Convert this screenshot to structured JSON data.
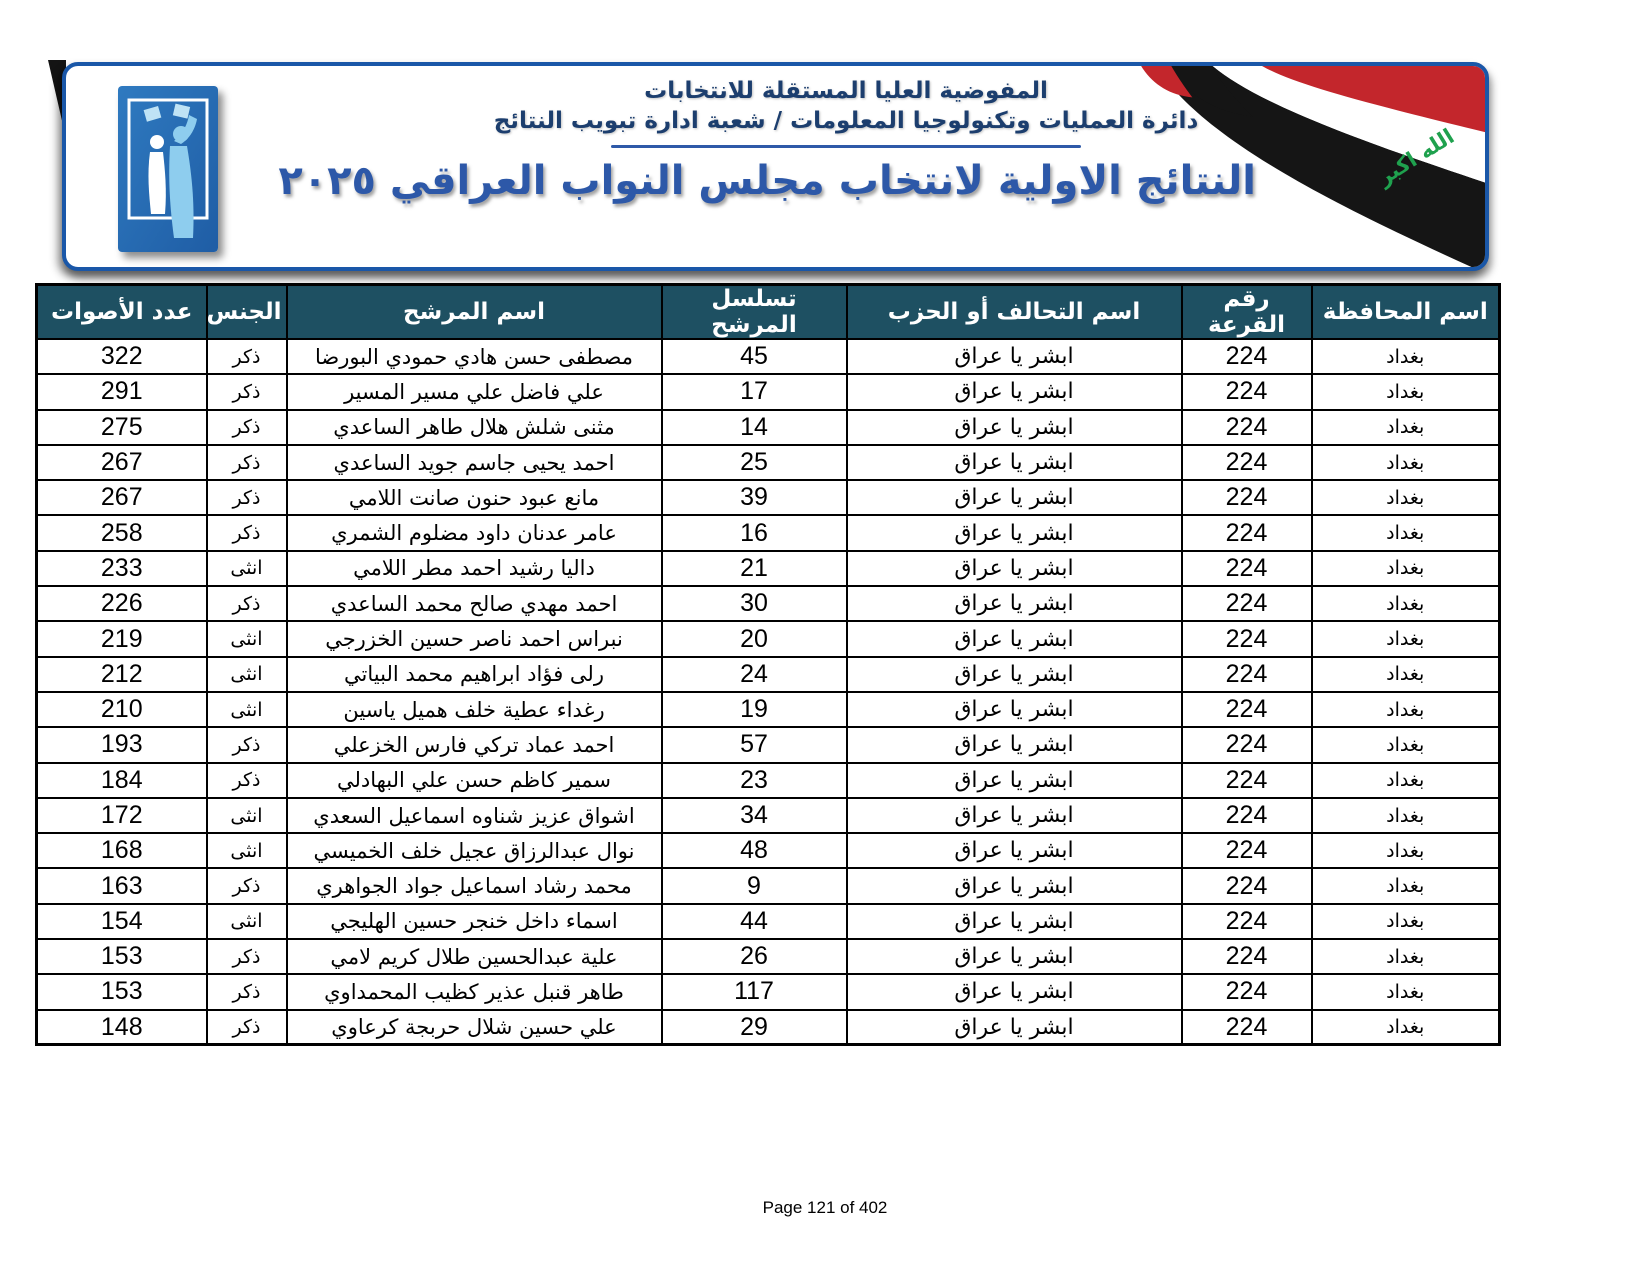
{
  "header": {
    "org_line1": "المفوضية العليا المستقلة للانتخابات",
    "org_line2": "دائرة العمليات وتكنولوجيا المعلومات / شعبة ادارة تبويب النتائج",
    "title": "النتائج الاولية لانتخاب مجلس النواب العراقي ٢٠٢٥",
    "flag_text": "الله اكبر"
  },
  "colors": {
    "banner_border": "#1a57a8",
    "title_blue": "#2d58a8",
    "table_header_bg": "#1e5062",
    "flag_red": "#c3262c",
    "flag_black": "#151515",
    "flag_green": "#1fa14e",
    "logo_blue": "#2a70b8"
  },
  "table": {
    "columns": [
      "اسم المحافظة",
      "رقم القرعة",
      "اسم التحالف أو الحزب",
      "تسلسل المرشح",
      "اسم المرشح",
      "الجنس",
      "عدد الأصوات"
    ],
    "rows": [
      {
        "governorate": "بغداد",
        "lottery": "224",
        "party": "ابشر يا عراق",
        "sequence": "45",
        "name": "مصطفى حسن هادي حمودي البورضا",
        "gender": "ذكر",
        "votes": "322"
      },
      {
        "governorate": "بغداد",
        "lottery": "224",
        "party": "ابشر يا عراق",
        "sequence": "17",
        "name": "علي فاضل علي مسير المسير",
        "gender": "ذكر",
        "votes": "291"
      },
      {
        "governorate": "بغداد",
        "lottery": "224",
        "party": "ابشر يا عراق",
        "sequence": "14",
        "name": "مثنى شلش هلال طاهر الساعدي",
        "gender": "ذكر",
        "votes": "275"
      },
      {
        "governorate": "بغداد",
        "lottery": "224",
        "party": "ابشر يا عراق",
        "sequence": "25",
        "name": "احمد يحيى جاسم جويد الساعدي",
        "gender": "ذكر",
        "votes": "267"
      },
      {
        "governorate": "بغداد",
        "lottery": "224",
        "party": "ابشر يا عراق",
        "sequence": "39",
        "name": "مانع عبود حنون صانت اللامي",
        "gender": "ذكر",
        "votes": "267"
      },
      {
        "governorate": "بغداد",
        "lottery": "224",
        "party": "ابشر يا عراق",
        "sequence": "16",
        "name": "عامر عدنان داود مضلوم الشمري",
        "gender": "ذكر",
        "votes": "258"
      },
      {
        "governorate": "بغداد",
        "lottery": "224",
        "party": "ابشر يا عراق",
        "sequence": "21",
        "name": "داليا رشيد احمد مطر اللامي",
        "gender": "انثى",
        "votes": "233"
      },
      {
        "governorate": "بغداد",
        "lottery": "224",
        "party": "ابشر يا عراق",
        "sequence": "30",
        "name": "احمد مهدي صالح محمد الساعدي",
        "gender": "ذكر",
        "votes": "226"
      },
      {
        "governorate": "بغداد",
        "lottery": "224",
        "party": "ابشر يا عراق",
        "sequence": "20",
        "name": "نبراس احمد ناصر حسين الخزرجي",
        "gender": "انثى",
        "votes": "219"
      },
      {
        "governorate": "بغداد",
        "lottery": "224",
        "party": "ابشر يا عراق",
        "sequence": "24",
        "name": "رلى فؤاد ابراهيم محمد البياتي",
        "gender": "انثى",
        "votes": "212"
      },
      {
        "governorate": "بغداد",
        "lottery": "224",
        "party": "ابشر يا عراق",
        "sequence": "19",
        "name": "رغداء عطية خلف هميل ياسين",
        "gender": "انثى",
        "votes": "210"
      },
      {
        "governorate": "بغداد",
        "lottery": "224",
        "party": "ابشر يا عراق",
        "sequence": "57",
        "name": "احمد عماد تركي فارس الخزعلي",
        "gender": "ذكر",
        "votes": "193"
      },
      {
        "governorate": "بغداد",
        "lottery": "224",
        "party": "ابشر يا عراق",
        "sequence": "23",
        "name": "سمير كاظم حسن علي البهادلي",
        "gender": "ذكر",
        "votes": "184"
      },
      {
        "governorate": "بغداد",
        "lottery": "224",
        "party": "ابشر يا عراق",
        "sequence": "34",
        "name": "اشواق عزيز شناوه اسماعيل السعدي",
        "gender": "انثى",
        "votes": "172"
      },
      {
        "governorate": "بغداد",
        "lottery": "224",
        "party": "ابشر يا عراق",
        "sequence": "48",
        "name": "نوال عبدالرزاق عجيل خلف الخميسي",
        "gender": "انثى",
        "votes": "168"
      },
      {
        "governorate": "بغداد",
        "lottery": "224",
        "party": "ابشر يا عراق",
        "sequence": "9",
        "name": "محمد رشاد اسماعيل جواد الجواهري",
        "gender": "ذكر",
        "votes": "163"
      },
      {
        "governorate": "بغداد",
        "lottery": "224",
        "party": "ابشر يا عراق",
        "sequence": "44",
        "name": "اسماء داخل خنجر حسين الهليجي",
        "gender": "انثى",
        "votes": "154"
      },
      {
        "governorate": "بغداد",
        "lottery": "224",
        "party": "ابشر يا عراق",
        "sequence": "26",
        "name": "علية عبدالحسين طلال كريم لامي",
        "gender": "ذكر",
        "votes": "153"
      },
      {
        "governorate": "بغداد",
        "lottery": "224",
        "party": "ابشر يا عراق",
        "sequence": "117",
        "name": "طاهر قنبل عذير كظيب المحمداوي",
        "gender": "ذكر",
        "votes": "153"
      },
      {
        "governorate": "بغداد",
        "lottery": "224",
        "party": "ابشر يا عراق",
        "sequence": "29",
        "name": "علي حسين شلال حربجة كرعاوي",
        "gender": "ذكر",
        "votes": "148"
      }
    ]
  },
  "footer": {
    "page_label": "Page 121 of 402"
  }
}
